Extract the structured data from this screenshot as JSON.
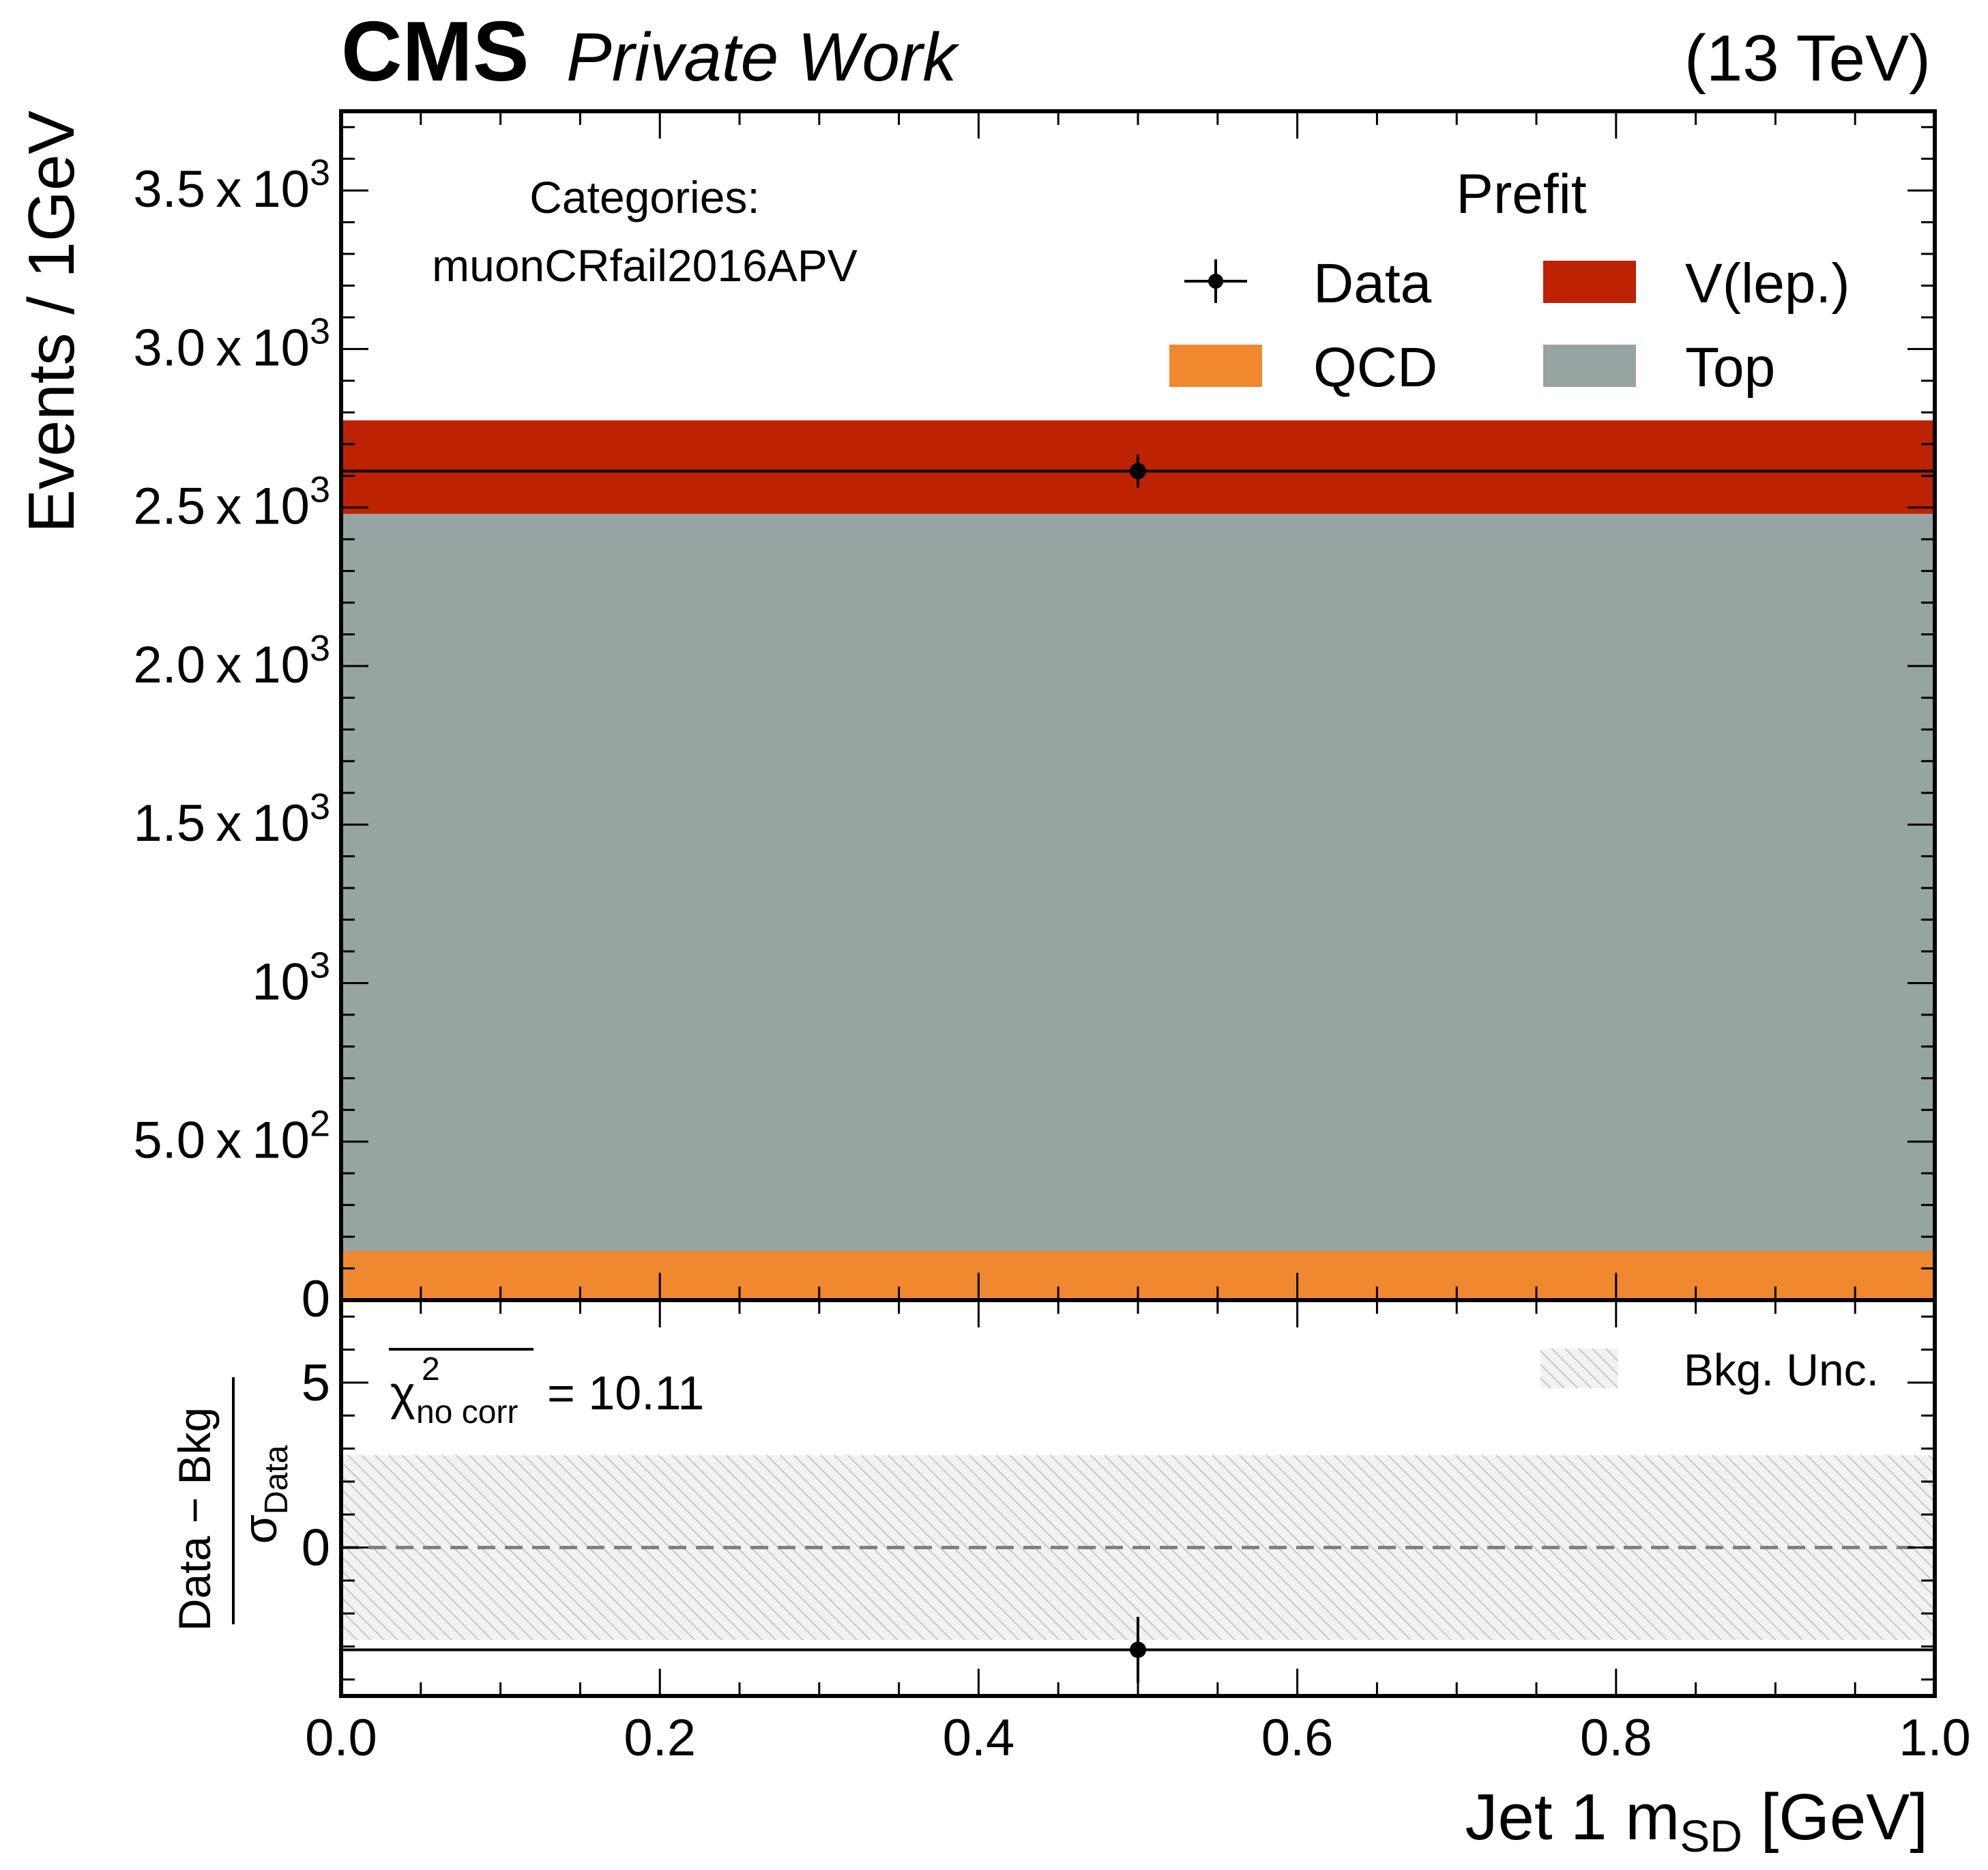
{
  "header": {
    "experiment": "CMS",
    "label": "Private Work",
    "energy": "(13 TeV)"
  },
  "chart_data": [
    {
      "panel": "main",
      "type": "bar",
      "stacked": true,
      "ylabel": "Events / 1GeV",
      "xlim": [
        0.0,
        1.0
      ],
      "ylim": [
        0,
        3750
      ],
      "yticks": [
        {
          "value": 0,
          "mantissa": "0",
          "exponent": ""
        },
        {
          "value": 500,
          "mantissa": "5.0 x 10",
          "exponent": "2"
        },
        {
          "value": 1000,
          "mantissa": "10",
          "exponent": "3"
        },
        {
          "value": 1500,
          "mantissa": "1.5 x 10",
          "exponent": "3"
        },
        {
          "value": 2000,
          "mantissa": "2.0 x 10",
          "exponent": "3"
        },
        {
          "value": 2500,
          "mantissa": "2.5 x 10",
          "exponent": "3"
        },
        {
          "value": 3000,
          "mantissa": "3.0 x 10",
          "exponent": "3"
        },
        {
          "value": 3500,
          "mantissa": "3.5 x 10",
          "exponent": "3"
        }
      ],
      "bin_edges": [
        0.0,
        1.0
      ],
      "series": [
        {
          "name": "QCD",
          "values": [
            155
          ],
          "color": "#f0882f"
        },
        {
          "name": "Top",
          "values": [
            2325
          ],
          "color": "#96a4a2"
        },
        {
          "name": "V(lep.)",
          "values": [
            295
          ],
          "color": "#bd2203"
        }
      ],
      "data": {
        "name": "Data",
        "x": [
          0.5
        ],
        "y": [
          2615
        ],
        "yerr": [
          52
        ]
      },
      "annotation": {
        "title": "Categories:",
        "category": "muonCRfail2016APV"
      },
      "legend": {
        "title": "Prefit",
        "placement": "top-right",
        "entries": [
          "Data",
          "V(lep.)",
          "QCD",
          "Top"
        ]
      }
    },
    {
      "panel": "pull",
      "type": "scatter",
      "ylabel_numerator": "Data − Bkg",
      "ylabel_denominator_symbol": "σ",
      "ylabel_denominator_sub": "Data",
      "xlabel_main": "Jet 1 m",
      "xlabel_sub": "SD",
      "xlabel_unit": " [GeV]",
      "xlim": [
        0.0,
        1.0
      ],
      "ylim": [
        -4.5,
        7.5
      ],
      "yticks": [
        0,
        5
      ],
      "xticks": [
        "0.0",
        "0.2",
        "0.4",
        "0.6",
        "0.8",
        "1.0"
      ],
      "points": {
        "x": [
          0.5
        ],
        "y": [
          -3.1
        ],
        "yerr": [
          1.0
        ]
      },
      "bkg_unc_band": [
        -2.8,
        2.8
      ],
      "reference_line": 0,
      "chi2": {
        "symbol": "χ",
        "sup": "2",
        "sub": "no corr",
        "value": "= 10.11"
      },
      "legend": {
        "entries": [
          "Bkg. Unc."
        ],
        "placement": "top-right"
      }
    }
  ]
}
